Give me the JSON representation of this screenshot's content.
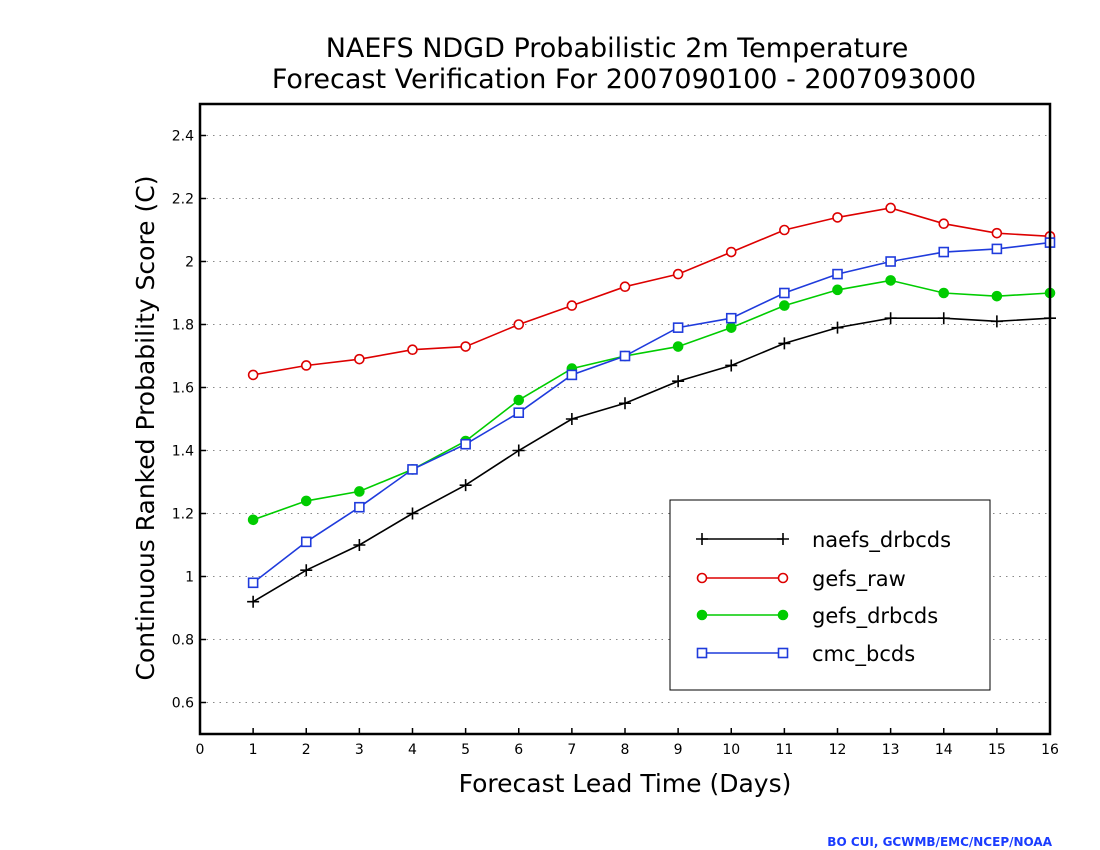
{
  "chart_data": {
    "type": "line",
    "title": "NAEFS NDGD Probabilistic 2m Temperature",
    "subtitle": "Forecast Verification For 2007090100 - 2007093000",
    "xlabel": "Forecast Lead Time (Days)",
    "ylabel": "Continuous Ranked Probability Score (C)",
    "xlim": [
      0,
      16
    ],
    "ylim": [
      0.5,
      2.5
    ],
    "xticks": [
      0,
      1,
      2,
      3,
      4,
      5,
      6,
      7,
      8,
      9,
      10,
      11,
      12,
      13,
      14,
      15,
      16
    ],
    "yticks": [
      0.6,
      0.8,
      1,
      1.2,
      1.4,
      1.6,
      1.8,
      2,
      2.2,
      2.4
    ],
    "ytick_labels": [
      "0.6",
      "0.8",
      "1",
      "1.2",
      "1.4",
      "1.6",
      "1.8",
      "2",
      "2.2",
      "2.4"
    ],
    "grid": "horizontal dotted",
    "legend_position": "bottom-right",
    "x": [
      1,
      2,
      3,
      4,
      5,
      6,
      7,
      8,
      9,
      10,
      11,
      12,
      13,
      14,
      15,
      16
    ],
    "series": [
      {
        "name": "naefs_drbcds",
        "color": "#000000",
        "marker": "plus",
        "values": [
          0.92,
          1.02,
          1.1,
          1.2,
          1.29,
          1.4,
          1.5,
          1.55,
          1.62,
          1.67,
          1.74,
          1.79,
          1.82,
          1.82,
          1.81,
          1.82
        ]
      },
      {
        "name": "gefs_raw",
        "color": "#dd0000",
        "marker": "circle-open",
        "values": [
          1.64,
          1.67,
          1.69,
          1.72,
          1.73,
          1.8,
          1.86,
          1.92,
          1.96,
          2.03,
          2.1,
          2.14,
          2.17,
          2.12,
          2.09,
          2.08
        ]
      },
      {
        "name": "gefs_drbcds",
        "color": "#00cc00",
        "marker": "circle-filled",
        "values": [
          1.18,
          1.24,
          1.27,
          1.34,
          1.43,
          1.56,
          1.66,
          1.7,
          1.73,
          1.79,
          1.86,
          1.91,
          1.94,
          1.9,
          1.89,
          1.9
        ]
      },
      {
        "name": "cmc_bcds",
        "color": "#1f3bdc",
        "marker": "square-open",
        "values": [
          0.98,
          1.11,
          1.22,
          1.34,
          1.42,
          1.52,
          1.64,
          1.7,
          1.79,
          1.82,
          1.9,
          1.96,
          2.0,
          2.03,
          2.04,
          2.06
        ]
      }
    ]
  },
  "credit": "BO CUI, GCWMB/EMC/NCEP/NOAA"
}
